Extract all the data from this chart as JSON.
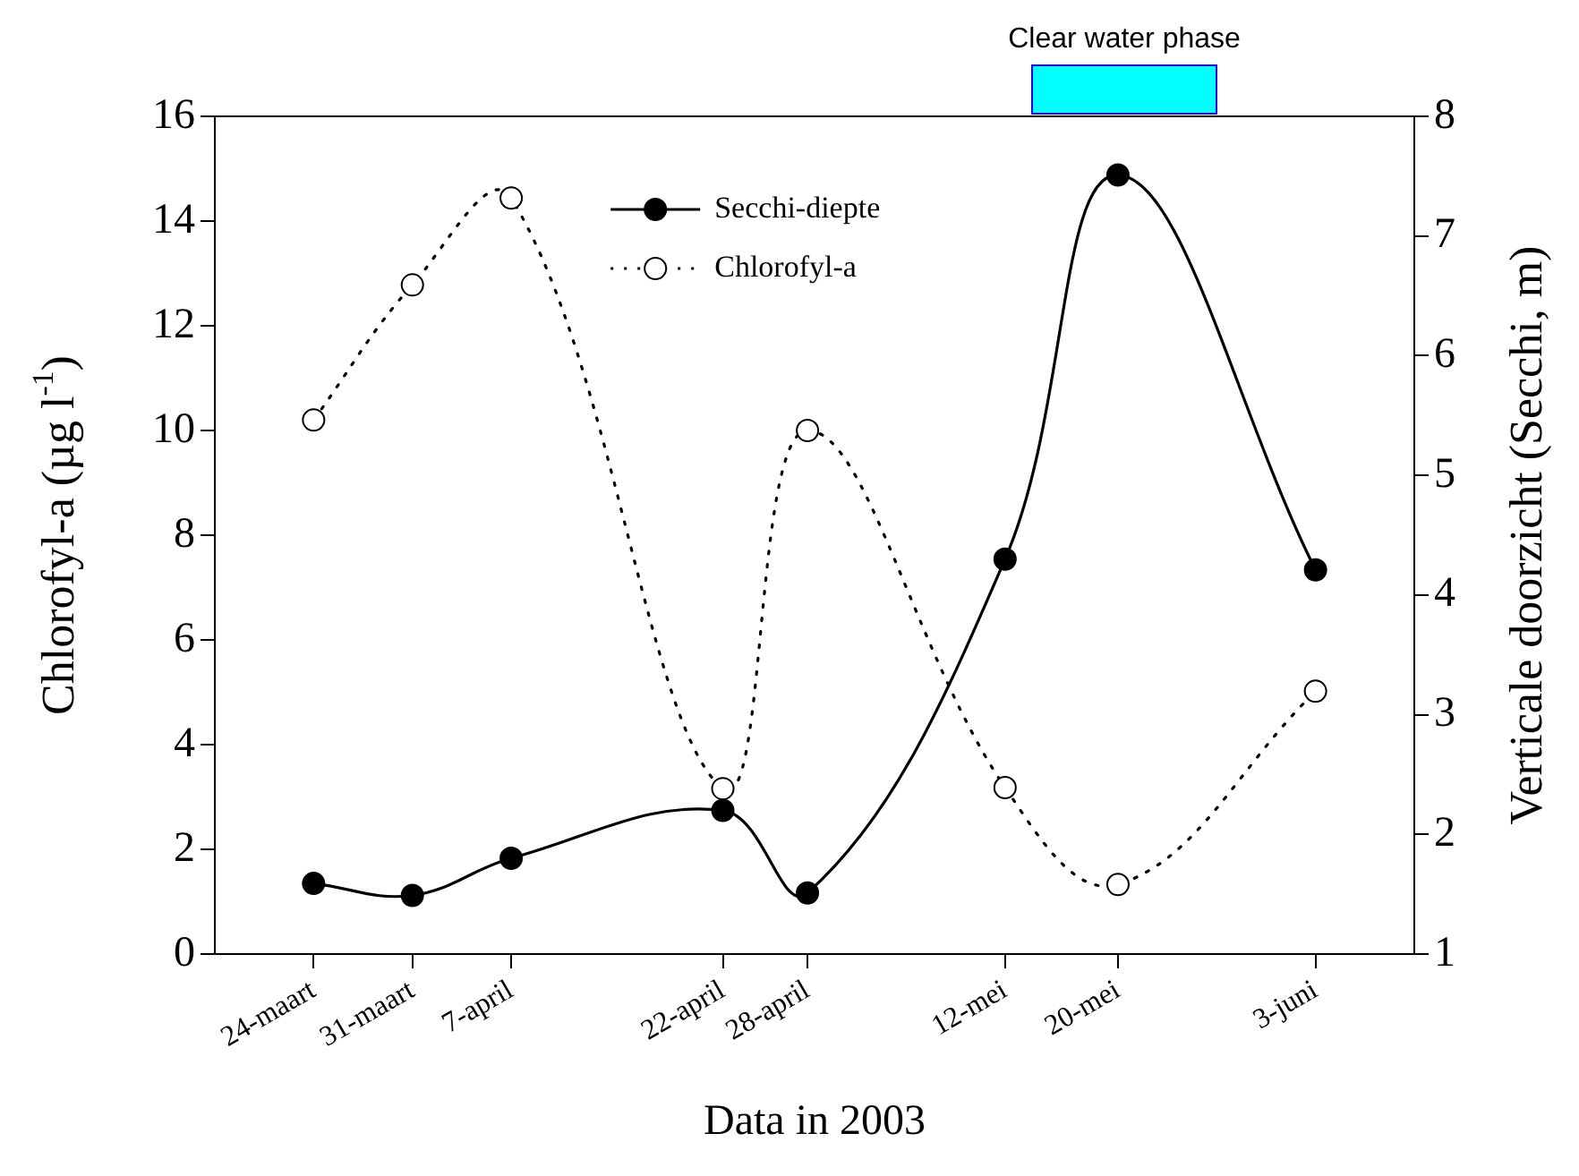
{
  "chart_data": {
    "type": "line",
    "xlabel": "Data in 2003",
    "ylabel": "Chlorofyl-a (µg l$^{-1}$)",
    "y2label": "Verticale doorzicht (Secchi, m)",
    "x": [
      "--03-24",
      "--03-31",
      "--04-07",
      "--04-22",
      "--04-28",
      "--05-12",
      "--05-20",
      "--06-03"
    ],
    "xlim": [
      "--03-17",
      "--06-10"
    ],
    "xticks": [
      {
        "value": "--03-24",
        "label": "24-maart"
      },
      {
        "value": "--03-31",
        "label": "31-maart"
      },
      {
        "value": "--04-07",
        "label": "7-april"
      },
      {
        "value": "--04-22",
        "label": "22-april"
      },
      {
        "value": "--04-28",
        "label": "28-april"
      },
      {
        "value": "--05-12",
        "label": "12-mei"
      },
      {
        "value": "--05-20",
        "label": "20-mei"
      },
      {
        "value": "--06-03",
        "label": "3-juni"
      }
    ],
    "ylim": [
      0,
      16
    ],
    "yticks": [
      0,
      2,
      4,
      6,
      8,
      10,
      12,
      14,
      16
    ],
    "y2lim": [
      1,
      8
    ],
    "y2ticks": [
      1,
      2,
      3,
      4,
      5,
      6,
      7,
      8
    ],
    "series": [
      {
        "name": "Secchi-diepte",
        "color": "#000000",
        "axis": "y2",
        "marker": "circle",
        "line_style": "solid",
        "values": [
          1.59,
          1.49,
          1.8,
          2.2,
          1.51,
          4.3,
          7.51,
          4.21
        ]
      },
      {
        "name": "Chlorofyl-a",
        "color": "#000000",
        "marker": "circle",
        "line_style": "dotted",
        "values": [
          10.2,
          12.78,
          14.44,
          3.16,
          10.0,
          3.18,
          1.33,
          5.02
        ]
      }
    ],
    "annotations": [
      "Clear water phase"
    ],
    "legend": "top",
    "grid": false
  }
}
